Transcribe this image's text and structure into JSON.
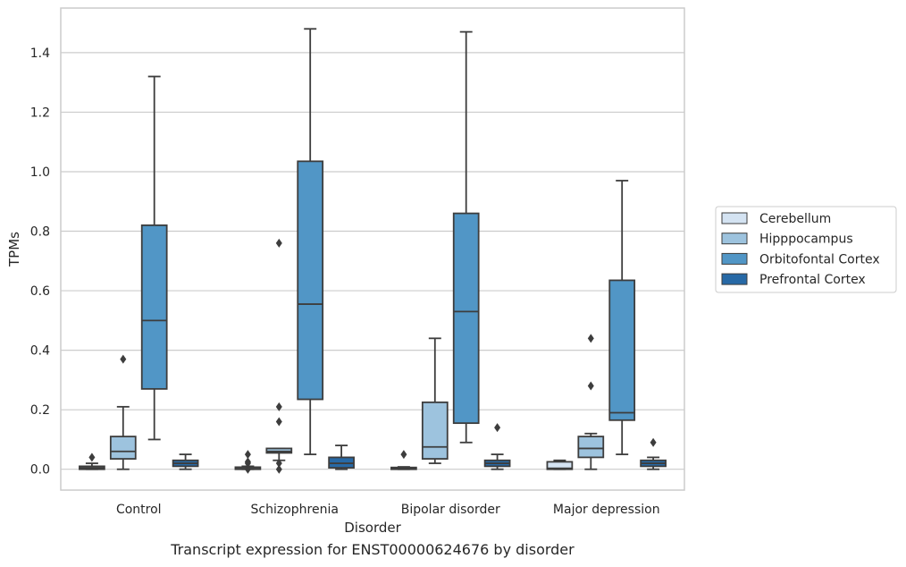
{
  "caption": "Transcript expression for ENST00000624676 by disorder",
  "colors": {
    "Cerebellum": "#d4e3f2",
    "Hipppocampus": "#9dc3de",
    "Orbitofontal Cortex": "#5196c6",
    "Prefrontal Cortex": "#2769a6",
    "grid": "#cccccc",
    "frame": "#cccccc",
    "line": "#3d3d3d"
  },
  "chart_data": {
    "type": "box",
    "title": "",
    "xlabel": "Disorder",
    "ylabel": "TPMs",
    "ylim": [
      -0.07,
      1.55
    ],
    "yticks": [
      0.0,
      0.2,
      0.4,
      0.6,
      0.8,
      1.0,
      1.2,
      1.4
    ],
    "ytick_labels": [
      "0.0",
      "0.2",
      "0.4",
      "0.6",
      "0.8",
      "1.0",
      "1.2",
      "1.4"
    ],
    "grid": "horizontal",
    "legend_position": "right",
    "categories": [
      "Control",
      "Schizophrenia",
      "Bipolar disorder",
      "Major depression"
    ],
    "series": [
      {
        "name": "Cerebellum",
        "boxes": [
          {
            "whislo": 0.0,
            "q1": 0.0,
            "med": 0.005,
            "q3": 0.01,
            "whishi": 0.02,
            "fliers": [
              0.04
            ]
          },
          {
            "whislo": 0.0,
            "q1": 0.0,
            "med": 0.002,
            "q3": 0.007,
            "whishi": 0.01,
            "fliers": [
              0.0,
              0.02,
              0.025,
              0.05
            ]
          },
          {
            "whislo": 0.0,
            "q1": 0.0,
            "med": 0.002,
            "q3": 0.006,
            "whishi": 0.008,
            "fliers": [
              0.05
            ]
          },
          {
            "whislo": 0.0,
            "q1": 0.0,
            "med": 0.003,
            "q3": 0.025,
            "whishi": 0.03,
            "fliers": []
          }
        ]
      },
      {
        "name": "Hipppocampus",
        "boxes": [
          {
            "whislo": 0.0,
            "q1": 0.035,
            "med": 0.06,
            "q3": 0.11,
            "whishi": 0.21,
            "fliers": [
              0.37
            ]
          },
          {
            "whislo": 0.03,
            "q1": 0.055,
            "med": 0.06,
            "q3": 0.07,
            "whishi": 0.07,
            "fliers": [
              0.0,
              0.02,
              0.16,
              0.21,
              0.76
            ]
          },
          {
            "whislo": 0.02,
            "q1": 0.035,
            "med": 0.075,
            "q3": 0.225,
            "whishi": 0.44,
            "fliers": []
          },
          {
            "whislo": 0.0,
            "q1": 0.04,
            "med": 0.07,
            "q3": 0.11,
            "whishi": 0.12,
            "fliers": [
              0.28,
              0.44
            ]
          }
        ]
      },
      {
        "name": "Orbitofontal Cortex",
        "boxes": [
          {
            "whislo": 0.1,
            "q1": 0.27,
            "med": 0.5,
            "q3": 0.82,
            "whishi": 1.32,
            "fliers": []
          },
          {
            "whislo": 0.05,
            "q1": 0.235,
            "med": 0.555,
            "q3": 1.035,
            "whishi": 1.48,
            "fliers": []
          },
          {
            "whislo": 0.09,
            "q1": 0.155,
            "med": 0.53,
            "q3": 0.86,
            "whishi": 1.47,
            "fliers": []
          },
          {
            "whislo": 0.05,
            "q1": 0.165,
            "med": 0.19,
            "q3": 0.635,
            "whishi": 0.97,
            "fliers": []
          }
        ]
      },
      {
        "name": "Prefrontal Cortex",
        "boxes": [
          {
            "whislo": 0.0,
            "q1": 0.01,
            "med": 0.02,
            "q3": 0.03,
            "whishi": 0.05,
            "fliers": []
          },
          {
            "whislo": 0.0,
            "q1": 0.005,
            "med": 0.02,
            "q3": 0.04,
            "whishi": 0.08,
            "fliers": []
          },
          {
            "whislo": 0.0,
            "q1": 0.01,
            "med": 0.02,
            "q3": 0.03,
            "whishi": 0.05,
            "fliers": [
              0.14
            ]
          },
          {
            "whislo": 0.0,
            "q1": 0.01,
            "med": 0.02,
            "q3": 0.03,
            "whishi": 0.04,
            "fliers": [
              0.09
            ]
          }
        ]
      }
    ]
  }
}
